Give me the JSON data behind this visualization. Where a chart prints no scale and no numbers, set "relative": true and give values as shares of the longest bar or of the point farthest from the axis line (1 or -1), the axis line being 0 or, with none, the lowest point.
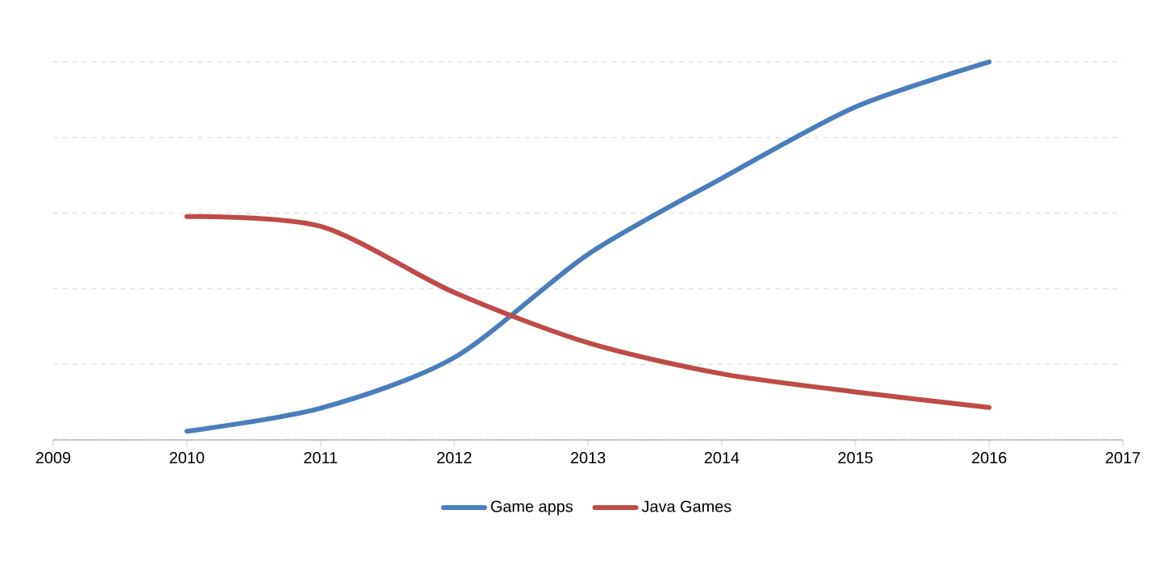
{
  "chart_data": {
    "type": "line",
    "relative": true,
    "x": [
      2010,
      2011,
      2012,
      2013,
      2014,
      2015,
      2016
    ],
    "xlim": [
      2009,
      2017
    ],
    "xticks": [
      2009,
      2010,
      2011,
      2012,
      2013,
      2014,
      2015,
      2016,
      2017
    ],
    "grid": "y",
    "legend": "bottom",
    "marker": "none",
    "line_style": "solid",
    "series": [
      {
        "name": "Game apps",
        "color": "#4a7ebb",
        "values": [
          0.023,
          0.084,
          0.218,
          0.491,
          0.692,
          0.881,
          1
        ]
      },
      {
        "name": "Java Games",
        "color": "#be4b48",
        "values": [
          0.591,
          0.565,
          0.39,
          0.257,
          0.175,
          0.127,
          0.086
        ]
      }
    ]
  }
}
